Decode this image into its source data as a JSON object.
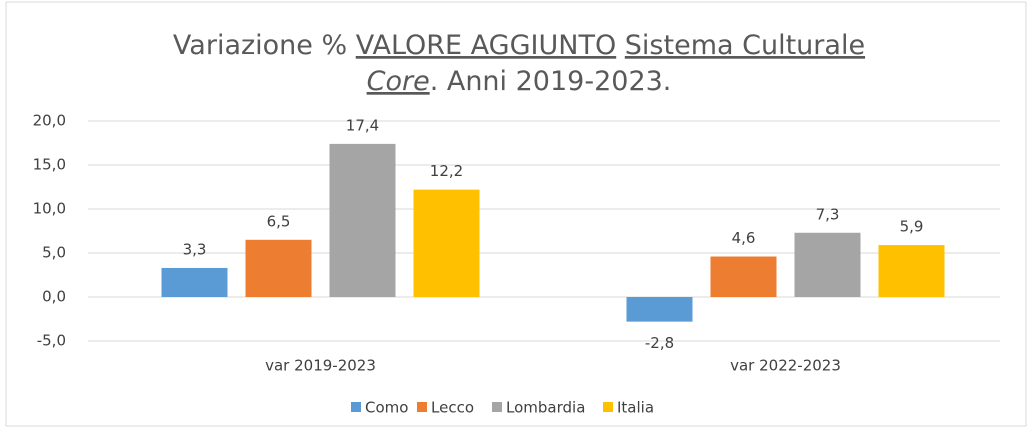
{
  "chart_data": {
    "type": "bar",
    "title_segments": [
      [
        {
          "text": "Variazione % ",
          "style": "normal"
        },
        {
          "text": "VALORE AGGIUNTO",
          "style": "underline"
        },
        {
          "text": " ",
          "style": "normal"
        },
        {
          "text": "Sistema Culturale",
          "style": "underline"
        }
      ],
      [
        {
          "text": "Core",
          "style": "italic-underline"
        },
        {
          "text": ". Anni 2019-2023.",
          "style": "normal"
        }
      ]
    ],
    "categories": [
      "var 2019-2023",
      "var 2022-2023"
    ],
    "series": [
      {
        "name": "Como",
        "color": "#5b9bd5",
        "values": [
          3.3,
          -2.8
        ],
        "value_labels": [
          "3,3",
          "-2,8"
        ]
      },
      {
        "name": "Lecco",
        "color": "#ed7d31",
        "values": [
          6.5,
          4.6
        ],
        "value_labels": [
          "6,5",
          "4,6"
        ]
      },
      {
        "name": "Lombardia",
        "color": "#a5a5a5",
        "values": [
          17.4,
          7.3
        ],
        "value_labels": [
          "17,4",
          "7,3"
        ]
      },
      {
        "name": "Italia",
        "color": "#ffc000",
        "values": [
          12.2,
          5.9
        ],
        "value_labels": [
          "12,2",
          "5,9"
        ]
      }
    ],
    "ylim": [
      -5,
      20
    ],
    "yticks": [
      {
        "value": -5,
        "label": "-5,0"
      },
      {
        "value": 0,
        "label": "0,0"
      },
      {
        "value": 5,
        "label": "5,0"
      },
      {
        "value": 10,
        "label": "10,0"
      },
      {
        "value": 15,
        "label": "15,0"
      },
      {
        "value": 20,
        "label": "20,0"
      }
    ],
    "grid": true,
    "legend": "bottom"
  }
}
